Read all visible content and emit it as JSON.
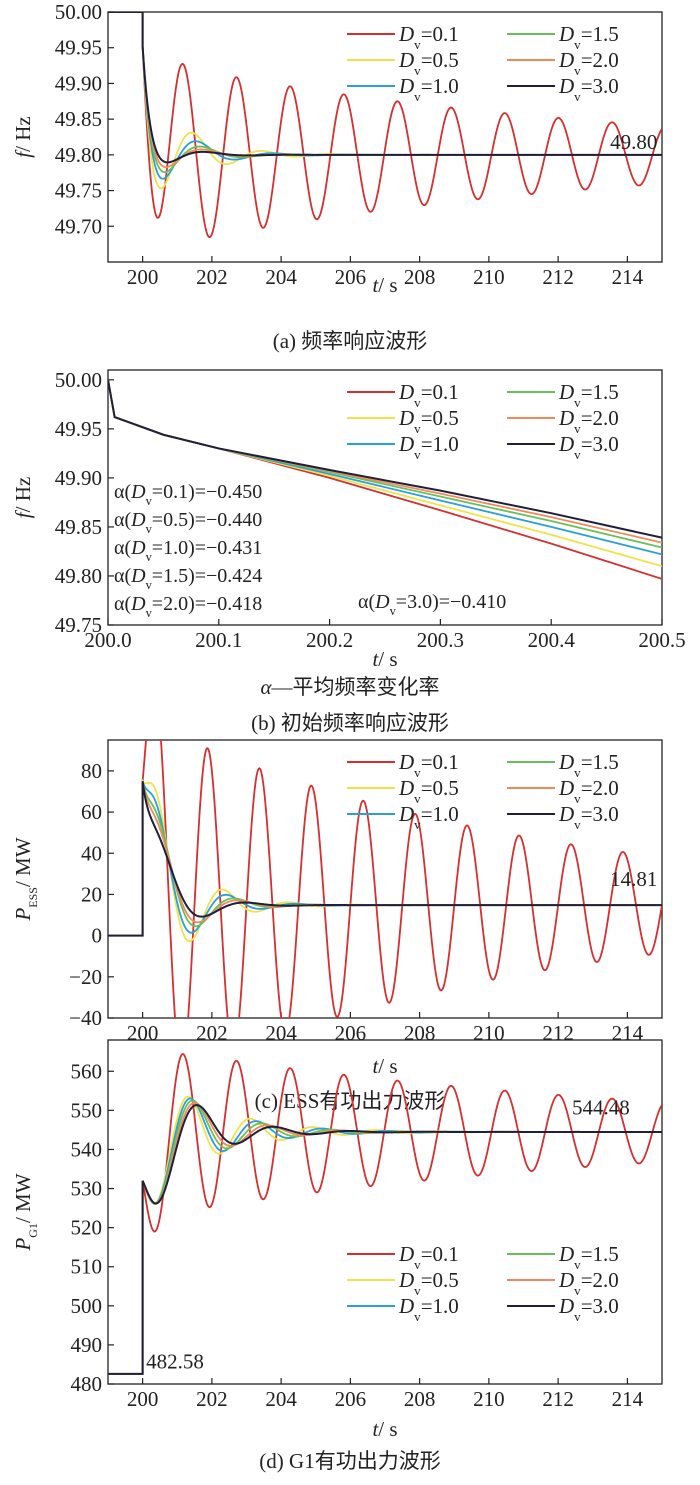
{
  "colors": {
    "D_0.1": "#d62f2f",
    "D_0.5": "#f0e34a",
    "D_1.0": "#2a9fd8",
    "D_1.5": "#6bbf59",
    "D_2.0": "#f08a5d",
    "D_3.0": "#1f1f3a"
  },
  "legend_labels": [
    "D_v=0.1",
    "D_v=0.5",
    "D_v=1.0",
    "D_v=1.5",
    "D_v=2.0",
    "D_v=3.0"
  ],
  "chart_data": [
    {
      "id": "a",
      "type": "line",
      "caption": "(a) 频率响应波形",
      "xlabel": "t/ s",
      "ylabel": "f/ Hz",
      "xlim": [
        199,
        215
      ],
      "ylim": [
        49.65,
        50.0
      ],
      "xticks": [
        "200",
        "202",
        "204",
        "206",
        "208",
        "210",
        "212",
        "214"
      ],
      "yticks": [
        "49.70",
        "49.75",
        "49.80",
        "49.85",
        "49.90",
        "49.95",
        "50.00"
      ],
      "legend_position": "top-right",
      "annotations": [
        {
          "text": "49.80",
          "x": 213.5,
          "y": 49.808
        }
      ],
      "series": [
        {
          "name": "D_v=0.1",
          "step_t": 200,
          "pre": 50.0,
          "jump": 49.952,
          "final": 49.8,
          "amp": -0.135,
          "damp": 0.08,
          "period": 1.55,
          "phase": 1.8
        },
        {
          "name": "D_v=0.5",
          "step_t": 200,
          "pre": 50.0,
          "jump": 49.952,
          "final": 49.8,
          "amp": -0.105,
          "damp": 0.85,
          "period": 2.0,
          "phase": 1.4
        },
        {
          "name": "D_v=1.0",
          "step_t": 200,
          "pre": 50.0,
          "jump": 49.952,
          "final": 49.8,
          "amp": -0.085,
          "damp": 0.95,
          "period": 2.2,
          "phase": 1.35
        },
        {
          "name": "D_v=1.5",
          "step_t": 200,
          "pre": 50.0,
          "jump": 49.952,
          "final": 49.8,
          "amp": -0.07,
          "damp": 1.05,
          "period": 2.4,
          "phase": 1.3
        },
        {
          "name": "D_v=2.0",
          "step_t": 200,
          "pre": 50.0,
          "jump": 49.952,
          "final": 49.8,
          "amp": -0.058,
          "damp": 1.15,
          "period": 2.5,
          "phase": 1.3
        },
        {
          "name": "D_v=3.0",
          "step_t": 200,
          "pre": 50.0,
          "jump": 49.952,
          "final": 49.8,
          "amp": -0.045,
          "damp": 1.3,
          "period": 2.6,
          "phase": 1.3
        }
      ]
    },
    {
      "id": "b",
      "type": "line",
      "caption": "(b) 初始频率响应波形",
      "subcaption": "α—平均频率变化率",
      "xlabel": "t/ s",
      "ylabel": "f/ Hz",
      "xlim": [
        200.0,
        200.5
      ],
      "ylim": [
        49.75,
        50.01
      ],
      "xticks": [
        "200.0",
        "200.1",
        "200.2",
        "200.3",
        "200.4",
        "200.5"
      ],
      "yticks": [
        "49.75",
        "49.80",
        "49.85",
        "49.90",
        "49.95",
        "50.00"
      ],
      "legend_position": "top-right",
      "annotations": [
        {
          "text": "α(D_v=0.1)=−0.450"
        },
        {
          "text": "α(D_v=0.5)=−0.440"
        },
        {
          "text": "α(D_v=1.0)=−0.431"
        },
        {
          "text": "α(D_v=1.5)=−0.424"
        },
        {
          "text": "α(D_v=2.0)=−0.418"
        },
        {
          "text": "α(D_v=3.0)=−0.410"
        }
      ],
      "series": [
        {
          "name": "D_v=0.1",
          "x": [
            200.0,
            200.006,
            200.05,
            200.1,
            200.2,
            200.3,
            200.4,
            200.5
          ],
          "y": [
            50.0,
            49.962,
            49.944,
            49.93,
            49.9,
            49.867,
            49.833,
            49.797
          ]
        },
        {
          "name": "D_v=0.5",
          "x": [
            200.0,
            200.006,
            200.05,
            200.1,
            200.2,
            200.3,
            200.4,
            200.5
          ],
          "y": [
            50.0,
            49.962,
            49.944,
            49.93,
            49.902,
            49.872,
            49.842,
            49.81
          ]
        },
        {
          "name": "D_v=1.0",
          "x": [
            200.0,
            200.006,
            200.05,
            200.1,
            200.2,
            200.3,
            200.4,
            200.5
          ],
          "y": [
            50.0,
            49.962,
            49.944,
            49.93,
            49.904,
            49.877,
            49.85,
            49.822
          ]
        },
        {
          "name": "D_v=1.5",
          "x": [
            200.0,
            200.006,
            200.05,
            200.1,
            200.2,
            200.3,
            200.4,
            200.5
          ],
          "y": [
            50.0,
            49.962,
            49.944,
            49.93,
            49.906,
            49.881,
            49.856,
            49.829
          ]
        },
        {
          "name": "D_v=2.0",
          "x": [
            200.0,
            200.006,
            200.05,
            200.1,
            200.2,
            200.3,
            200.4,
            200.5
          ],
          "y": [
            50.0,
            49.962,
            49.944,
            49.93,
            49.907,
            49.884,
            49.86,
            49.834
          ]
        },
        {
          "name": "D_v=3.0",
          "x": [
            200.0,
            200.006,
            200.05,
            200.1,
            200.2,
            200.3,
            200.4,
            200.5
          ],
          "y": [
            50.0,
            49.962,
            49.944,
            49.93,
            49.908,
            49.887,
            49.864,
            49.839
          ]
        }
      ]
    },
    {
      "id": "c",
      "type": "line",
      "caption": "(c) ESS有功出力波形",
      "xlabel": "t/ s",
      "ylabel": "P_ESS/ MW",
      "xlim": [
        199,
        215
      ],
      "ylim": [
        -40,
        95
      ],
      "xticks": [
        "200",
        "202",
        "204",
        "206",
        "208",
        "210",
        "212",
        "214"
      ],
      "yticks": [
        "−40",
        "−20",
        "0",
        "20",
        "40",
        "60",
        "80"
      ],
      "legend_position": "top-right",
      "annotations": [
        {
          "text": "14.81",
          "x": 213.5,
          "y": 24
        }
      ],
      "series": [
        {
          "name": "D_v=0.1",
          "step_t": 200,
          "pre": 0,
          "jump": 75,
          "final": 14.81,
          "amp": 90,
          "damp": 0.09,
          "period": 1.5,
          "phase": 0.0
        },
        {
          "name": "D_v=0.5",
          "step_t": 200,
          "pre": 0,
          "jump": 75,
          "final": 14.81,
          "amp": 62,
          "damp": 0.9,
          "period": 1.9,
          "phase": 0.0
        },
        {
          "name": "D_v=1.0",
          "step_t": 200,
          "pre": 0,
          "jump": 75,
          "final": 14.81,
          "amp": 58,
          "damp": 1.0,
          "period": 2.0,
          "phase": 0.0
        },
        {
          "name": "D_v=1.5",
          "step_t": 200,
          "pre": 0,
          "jump": 75,
          "final": 14.81,
          "amp": 55,
          "damp": 1.05,
          "period": 2.2,
          "phase": 0.0
        },
        {
          "name": "D_v=2.0",
          "step_t": 200,
          "pre": 0,
          "jump": 75,
          "final": 14.81,
          "amp": 52,
          "damp": 1.1,
          "period": 2.3,
          "phase": 0.0
        },
        {
          "name": "D_v=3.0",
          "step_t": 200,
          "pre": 0,
          "jump": 75,
          "final": 14.81,
          "amp": 48,
          "damp": 1.2,
          "period": 2.5,
          "phase": 0.0
        }
      ]
    },
    {
      "id": "d",
      "type": "line",
      "caption": "(d) G1有功出力波形",
      "xlabel": "t/ s",
      "ylabel": "P_G1/ MW",
      "xlim": [
        199,
        215
      ],
      "ylim": [
        480,
        568
      ],
      "xticks": [
        "200",
        "202",
        "204",
        "206",
        "208",
        "210",
        "212",
        "214"
      ],
      "yticks": [
        "480",
        "490",
        "500",
        "510",
        "520",
        "530",
        "540",
        "550",
        "560"
      ],
      "legend_position": "lower-right",
      "annotations": [
        {
          "text": "544.48",
          "x": 212.4,
          "y": 549
        },
        {
          "text": "482.58",
          "x": 200.1,
          "y": 484
        }
      ],
      "series": [
        {
          "name": "D_v=0.1",
          "step_t": 200,
          "pre": 482.58,
          "jump": 532,
          "final": 544.48,
          "amp": -22,
          "damp": 0.07,
          "period": 1.55,
          "phase": 0.0
        },
        {
          "name": "D_v=0.5",
          "step_t": 200,
          "pre": 482.58,
          "jump": 532,
          "final": 544.48,
          "amp": -19,
          "damp": 0.55,
          "period": 1.8,
          "phase": 0.0
        },
        {
          "name": "D_v=1.0",
          "step_t": 200,
          "pre": 482.58,
          "jump": 532,
          "final": 544.48,
          "amp": -20,
          "damp": 0.6,
          "period": 1.9,
          "phase": 0.0
        },
        {
          "name": "D_v=1.5",
          "step_t": 200,
          "pre": 482.58,
          "jump": 532,
          "final": 544.48,
          "amp": -21,
          "damp": 0.65,
          "period": 2.0,
          "phase": 0.0
        },
        {
          "name": "D_v=2.0",
          "step_t": 200,
          "pre": 482.58,
          "jump": 532,
          "final": 544.48,
          "amp": -22,
          "damp": 0.7,
          "period": 2.1,
          "phase": 0.0
        },
        {
          "name": "D_v=3.0",
          "step_t": 200,
          "pre": 482.58,
          "jump": 532,
          "final": 544.48,
          "amp": -23,
          "damp": 0.75,
          "period": 2.2,
          "phase": 0.0
        }
      ]
    }
  ]
}
